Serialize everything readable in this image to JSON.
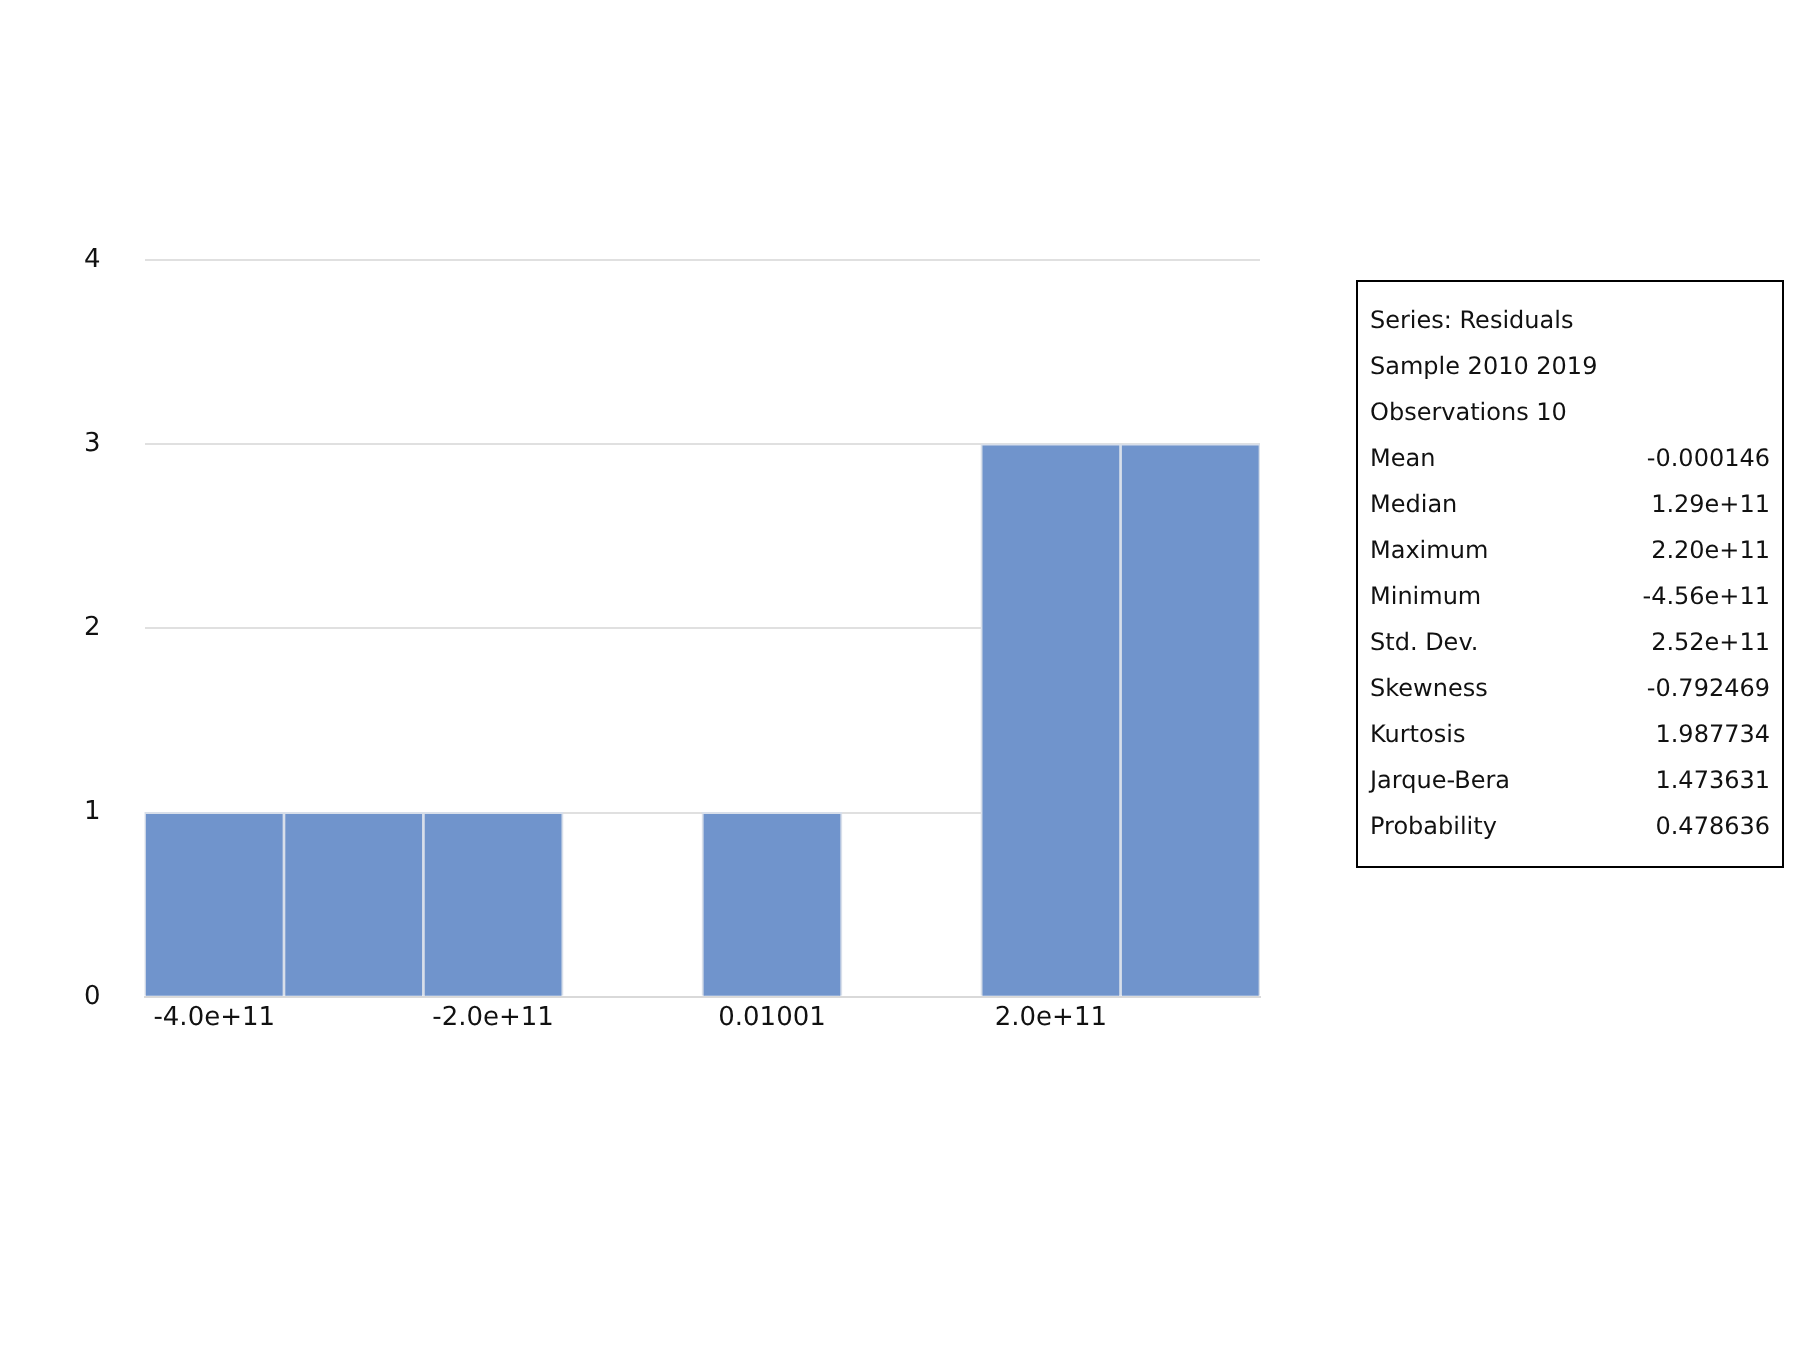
{
  "chart_data": {
    "type": "histogram",
    "color": "#7094cc",
    "bins": [
      -450000000000,
      -350000000000,
      -250000000000,
      -150000000000,
      -50000000000,
      50000000000,
      150000000000,
      250000000000,
      350000000000
    ],
    "values": [
      1,
      1,
      1,
      0,
      1,
      0,
      3,
      3
    ],
    "xlim": [
      -450000000000,
      350000000000
    ],
    "xticks": [
      {
        "value": -400000000000,
        "label": "-4.0e+11"
      },
      {
        "value": -200000000000,
        "label": "-2.0e+11"
      },
      {
        "value": 0.01001,
        "label": "0.01001"
      },
      {
        "value": 200000000000,
        "label": "2.0e+11"
      }
    ],
    "ylim": [
      0,
      4
    ],
    "yticks": [
      0,
      1,
      2,
      3,
      4
    ],
    "grid": "y",
    "legend": false,
    "annotations": [
      "Series: Residuals",
      "Sample 2010 2019",
      "Observations 10",
      "Mean\t-0.000146",
      "Median\t1.29e+11",
      "Maximum\t2.20e+11",
      "Minimum\t-4.56e+11",
      "Std. Dev.\t2.52e+11",
      "Skewness\t-0.792469",
      "Kurtosis\t1.987734",
      "Jarque-Bera\t1.473631",
      "Probability\t0.478636"
    ]
  }
}
